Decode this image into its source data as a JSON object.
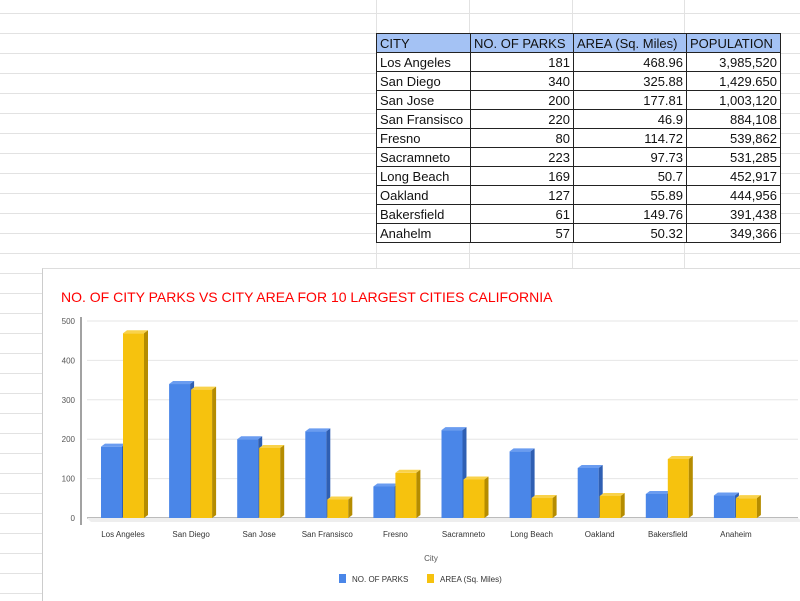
{
  "table": {
    "headers": [
      "CITY",
      "NO. OF PARKS",
      "AREA (Sq. Miles)",
      "POPULATION"
    ],
    "rows": [
      [
        "Los Angeles",
        "181",
        "468.96",
        "3,985,520"
      ],
      [
        "San Diego",
        "340",
        "325.88",
        "1,429.650"
      ],
      [
        "San Jose",
        "200",
        "177.81",
        "1,003,120"
      ],
      [
        "San Fransisco",
        "220",
        "46.9",
        "884,108"
      ],
      [
        "Fresno",
        "80",
        "114.72",
        "539,862"
      ],
      [
        "Sacramneto",
        "223",
        "97.73",
        "531,285"
      ],
      [
        "Long Beach",
        "169",
        "50.7",
        "452,917"
      ],
      [
        "Oakland",
        "127",
        "55.89",
        "444,956"
      ],
      [
        "Bakersfield",
        "61",
        "149.76",
        "391,438"
      ],
      [
        "Anahelm",
        "57",
        "50.32",
        "349,366"
      ]
    ]
  },
  "chart_data": {
    "type": "bar",
    "title": "NO. OF CITY PARKS VS CITY AREA FOR 10 LARGEST CITIES CALIFORNIA",
    "xlabel": "City",
    "ylabel": "",
    "ylim": [
      0,
      500
    ],
    "yticks": [
      "0",
      "100",
      "200",
      "300",
      "400",
      "500"
    ],
    "grid": true,
    "legend_position": "bottom",
    "categories": [
      "Los Angeles",
      "San Diego",
      "San Jose",
      "San Fransisco",
      "Fresno",
      "Sacramneto",
      "Long Beach",
      "Oakland",
      "Bakersfield",
      "Anaheim"
    ],
    "series": [
      {
        "name": "NO. OF PARKS",
        "color": "#4a86e8",
        "values": [
          181,
          340,
          200,
          220,
          80,
          223,
          169,
          127,
          61,
          57
        ]
      },
      {
        "name": "AREA (Sq. Miles)",
        "color": "#f6c20e",
        "values": [
          468.96,
          325.88,
          177.81,
          46.9,
          114.72,
          97.73,
          50.7,
          55.89,
          149.76,
          50.32
        ]
      }
    ]
  }
}
